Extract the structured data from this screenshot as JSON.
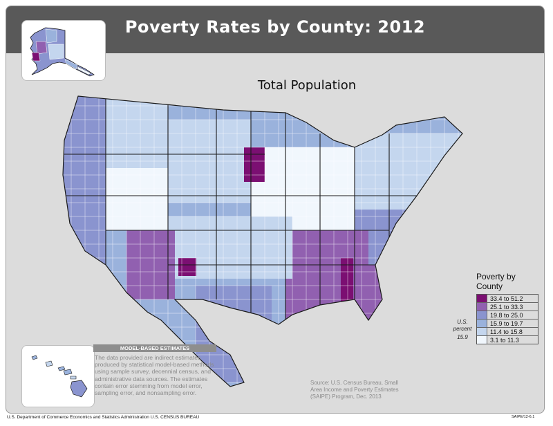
{
  "title": "Poverty Rates by County: 2012",
  "subtitle": "Total Population",
  "legend": {
    "title_line1": "Poverty by",
    "title_line2": "County",
    "items": [
      {
        "label": "33.4 to 51.2",
        "color": "#7b0f72"
      },
      {
        "label": "25.1 to 33.3",
        "color": "#9160b0"
      },
      {
        "label": "19.8 to 25.0",
        "color": "#8a94cf"
      },
      {
        "label": "15.9 to 19.7",
        "color": "#9ab2dc"
      },
      {
        "label": "11.4 to 15.8",
        "color": "#c4d6ee"
      },
      {
        "label": "3.1 to 11.3",
        "color": "#f1f7fd"
      }
    ]
  },
  "us_percent": {
    "label_line1": "U.S.",
    "label_line2": "percent",
    "value": "15.9"
  },
  "model_estimates": {
    "heading": "MODEL-BASED ESTIMATES",
    "text": "The data provided are indirect estimates produced by statistical model-based methods using sample survey, decennial census, and administrative data sources. The estimates contain error stemming from model error, sampling error, and nonsampling error."
  },
  "source": "Source: U.S. Census Bureau, Small Area Income and Poverty Estimates (SAIPE) Program, Dec. 2013",
  "footer": "U.S. Department of Commerce  Economics and Statistics Administration  U.S. CENSUS BUREAU",
  "footer_code": "SAIPE/12-6.1",
  "colors": {
    "panel": "#dcdcdc",
    "title_bar": "#595959",
    "state_border": "#1a1a1a",
    "county_border": "#ffffff"
  }
}
